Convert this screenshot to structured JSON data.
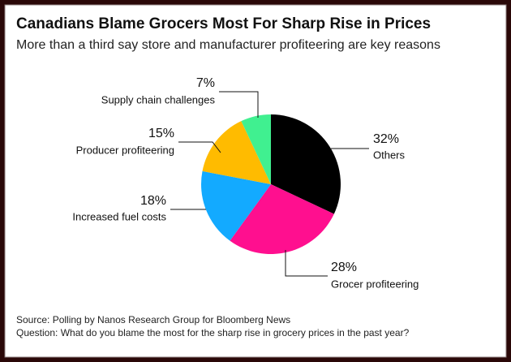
{
  "chart_data": {
    "type": "pie",
    "title": "Canadians Blame Grocers Most For Sharp Rise in Prices",
    "subtitle": "More than a third say store and manufacturer profiteering are key reasons",
    "categories": [
      "Others",
      "Grocer profiteering",
      "Increased fuel costs",
      "Producer profiteering",
      "Supply chain challenges"
    ],
    "values": [
      32,
      28,
      18,
      15,
      7
    ],
    "value_labels": [
      "32%",
      "28%",
      "18%",
      "15%",
      "7%"
    ],
    "colors": [
      "#000000",
      "#ff0f8f",
      "#13aaff",
      "#ffbb00",
      "#40f090"
    ],
    "source": "Source: Polling by Nanos Research Group for Bloomberg News",
    "note": "Question: What do you blame the most for the sharp rise in grocery prices in the past year?"
  }
}
